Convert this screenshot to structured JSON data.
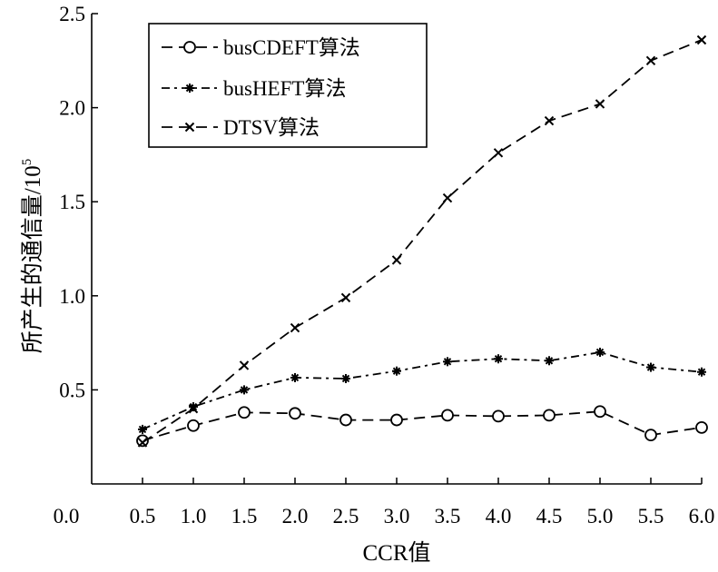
{
  "chart_data": {
    "type": "line",
    "x": [
      0.5,
      1.0,
      1.5,
      2.0,
      2.5,
      3.0,
      3.5,
      4.0,
      4.5,
      5.0,
      5.5,
      6.0
    ],
    "xlabel": "CCR值",
    "ylabel_main": "所产生的通信量/10",
    "ylabel_sup": "5",
    "xlim": [
      0.0,
      6.0
    ],
    "ylim": [
      0.0,
      2.5
    ],
    "xticks": [
      "0.0",
      "0.5",
      "1.0",
      "1.5",
      "2.0",
      "2.5",
      "3.0",
      "3.5",
      "4.0",
      "4.5",
      "5.0",
      "5.5",
      "6.0"
    ],
    "yticks": [
      "0.5",
      "1.0",
      "1.5",
      "2.0",
      "2.5"
    ],
    "legend_position": "top-left",
    "grid": false,
    "series": [
      {
        "name": "busCDEFT算法",
        "marker": "circle",
        "dash": "dashed",
        "color": "#000000",
        "values": [
          0.23,
          0.31,
          0.38,
          0.375,
          0.34,
          0.34,
          0.365,
          0.36,
          0.365,
          0.385,
          0.26,
          0.3
        ]
      },
      {
        "name": "busHEFT算法",
        "marker": "star",
        "dash": "dashdot",
        "color": "#000000",
        "values": [
          0.29,
          0.41,
          0.5,
          0.565,
          0.56,
          0.6,
          0.65,
          0.665,
          0.655,
          0.7,
          0.62,
          0.595
        ]
      },
      {
        "name": "DTSV算法",
        "marker": "x",
        "dash": "dashed",
        "color": "#000000",
        "values": [
          0.22,
          0.4,
          0.63,
          0.83,
          0.99,
          1.19,
          1.52,
          1.76,
          1.93,
          2.02,
          2.25,
          2.36
        ]
      }
    ]
  }
}
